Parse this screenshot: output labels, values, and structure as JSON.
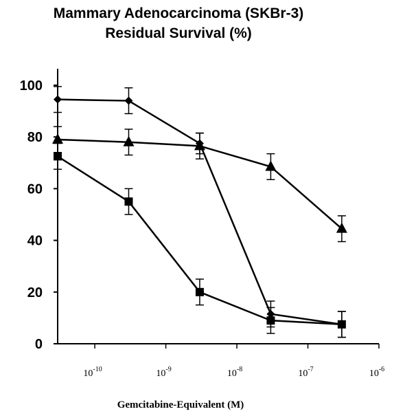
{
  "chart_data": {
    "type": "line",
    "title": "Mammary Adenocarcinoma (SKBr-3)",
    "subtitle": "Residual Survival (%)",
    "xlabel": "Gemcitabine-Equivalent (M)",
    "ylabel": "",
    "x_scale": "log",
    "xlim": [
      3e-11,
      1e-06
    ],
    "ylim": [
      0,
      100
    ],
    "y_ticks": [
      "0",
      "20",
      "40",
      "60",
      "80",
      "100"
    ],
    "x_ticks": [
      {
        "base": "10",
        "exp": "-10",
        "value": 1e-10
      },
      {
        "base": "10",
        "exp": "-9",
        "value": 1e-09
      },
      {
        "base": "10",
        "exp": "-8",
        "value": 1e-08
      },
      {
        "base": "10",
        "exp": "-7",
        "value": 1e-07
      },
      {
        "base": "10",
        "exp": "-6",
        "value": 1e-06
      }
    ],
    "grid": false,
    "legend": "none",
    "series": [
      {
        "marker": "diamond",
        "x": [
          3e-11,
          3e-10,
          3e-09,
          3e-08,
          3e-07
        ],
        "y": [
          94.5,
          94,
          77.5,
          11.5,
          7.5
        ],
        "err": [
          5,
          5,
          4,
          5,
          5
        ]
      },
      {
        "marker": "triangle",
        "x": [
          3e-11,
          3e-10,
          3e-09,
          3e-08,
          3e-07
        ],
        "y": [
          79,
          78,
          76.5,
          68.5,
          44.5
        ],
        "err": [
          5,
          5,
          5,
          5,
          5
        ]
      },
      {
        "marker": "square",
        "x": [
          3e-11,
          3e-10,
          3e-09,
          3e-08,
          3e-07
        ],
        "y": [
          72.5,
          55,
          20,
          9,
          7.5
        ],
        "err": [
          5,
          5,
          5,
          5,
          5
        ]
      }
    ]
  }
}
